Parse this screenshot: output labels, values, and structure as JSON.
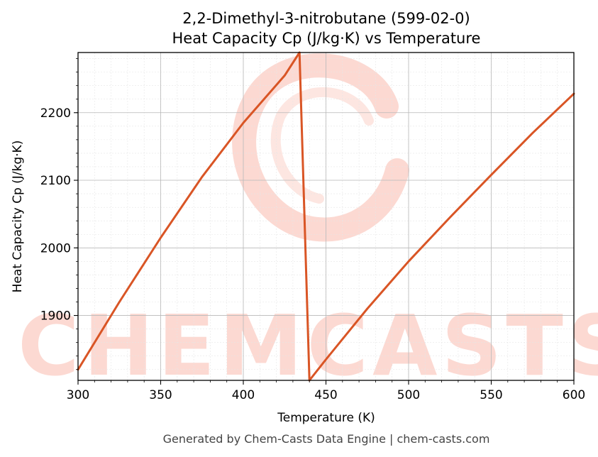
{
  "chart_data": {
    "type": "line",
    "title": "2,2-Dimethyl-3-nitrobutane (599-02-0)",
    "subtitle": "Heat Capacity Cp (J/kg·K) vs Temperature",
    "xlabel": "Temperature (K)",
    "ylabel": "Heat Capacity Cp (J/kg·K)",
    "xlim": [
      300,
      600
    ],
    "ylim": [
      1804,
      2289
    ],
    "xticks": [
      300,
      350,
      400,
      450,
      500,
      550,
      600
    ],
    "yticks": [
      1900,
      2000,
      2100,
      2200
    ],
    "grid": true,
    "series": [
      {
        "color": "#d95525",
        "x": [
          300,
          325,
          350,
          375,
          400,
          425,
          434,
          440,
          450,
          475,
          500,
          525,
          550,
          575,
          600
        ],
        "y": [
          1820,
          1920,
          2015,
          2105,
          2185,
          2255,
          2289,
          1804,
          1835,
          1910,
          1980,
          2045,
          2108,
          2170,
          2228
        ]
      }
    ]
  },
  "watermark": {
    "text": "CHEMCASTS",
    "color": "#fcd9d2"
  },
  "footer": "Generated by Chem-Casts Data Engine | chem-casts.com"
}
